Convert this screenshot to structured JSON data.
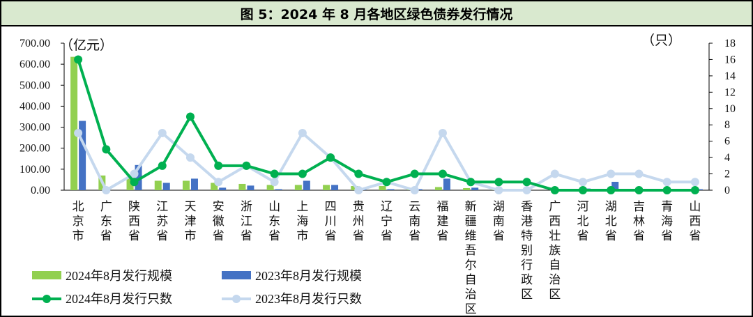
{
  "title": "图 5：2024 年 8 月各地区绿色债券发行情况",
  "chart_data": {
    "type": "bar",
    "categories": [
      "北京市",
      "广东省",
      "陕西省",
      "江苏省",
      "天津市",
      "安徽省",
      "浙江省",
      "山东省",
      "上海市",
      "四川省",
      "贵州省",
      "辽宁省",
      "云南省",
      "福建省",
      "新疆维吾尔自治区",
      "湖南省",
      "香港特别行政区",
      "广西壮族自治区",
      "河北省",
      "湖北省",
      "吉林省",
      "青海省",
      "山西省"
    ],
    "y_left": {
      "unit": "（亿元）",
      "ylim": [
        0,
        700
      ],
      "ticks": [
        "0.00",
        "100.00",
        "200.00",
        "300.00",
        "400.00",
        "500.00",
        "600.00",
        "700.00"
      ]
    },
    "y_right": {
      "unit": "（只）",
      "ylim": [
        0,
        18
      ],
      "ticks": [
        "0",
        "2",
        "4",
        "6",
        "8",
        "10",
        "12",
        "14",
        "16",
        "18"
      ]
    },
    "series": [
      {
        "name": "2024年8月发行规模",
        "kind": "bar",
        "axis": "left",
        "color": "#92d050",
        "values": [
          635,
          70,
          60,
          45,
          45,
          35,
          30,
          25,
          25,
          25,
          20,
          20,
          8,
          15,
          10,
          5,
          5,
          0,
          0,
          0,
          0,
          0,
          0
        ]
      },
      {
        "name": "2023年8月发行规模",
        "kind": "bar",
        "axis": "left",
        "color": "#4472c4",
        "values": [
          330,
          0,
          120,
          35,
          55,
          12,
          22,
          5,
          45,
          25,
          5,
          5,
          5,
          55,
          12,
          5,
          0,
          5,
          8,
          40,
          5,
          5,
          5
        ]
      },
      {
        "name": "2024年8月发行只数",
        "kind": "line",
        "axis": "right",
        "color": "#00b050",
        "values": [
          16,
          5,
          1,
          3,
          9,
          3,
          3,
          2,
          2,
          4,
          2,
          1,
          2,
          2,
          1,
          1,
          1,
          0,
          0,
          0,
          0,
          0,
          0
        ]
      },
      {
        "name": "2023年8月发行只数",
        "kind": "line",
        "axis": "right",
        "color": "#c5d8ee",
        "values": [
          7,
          0,
          2,
          7,
          4,
          1,
          3,
          1,
          7,
          4,
          0,
          1,
          0,
          7,
          1,
          0,
          0,
          2,
          1,
          2,
          2,
          1,
          1
        ]
      }
    ],
    "legend_position": "bottom"
  }
}
